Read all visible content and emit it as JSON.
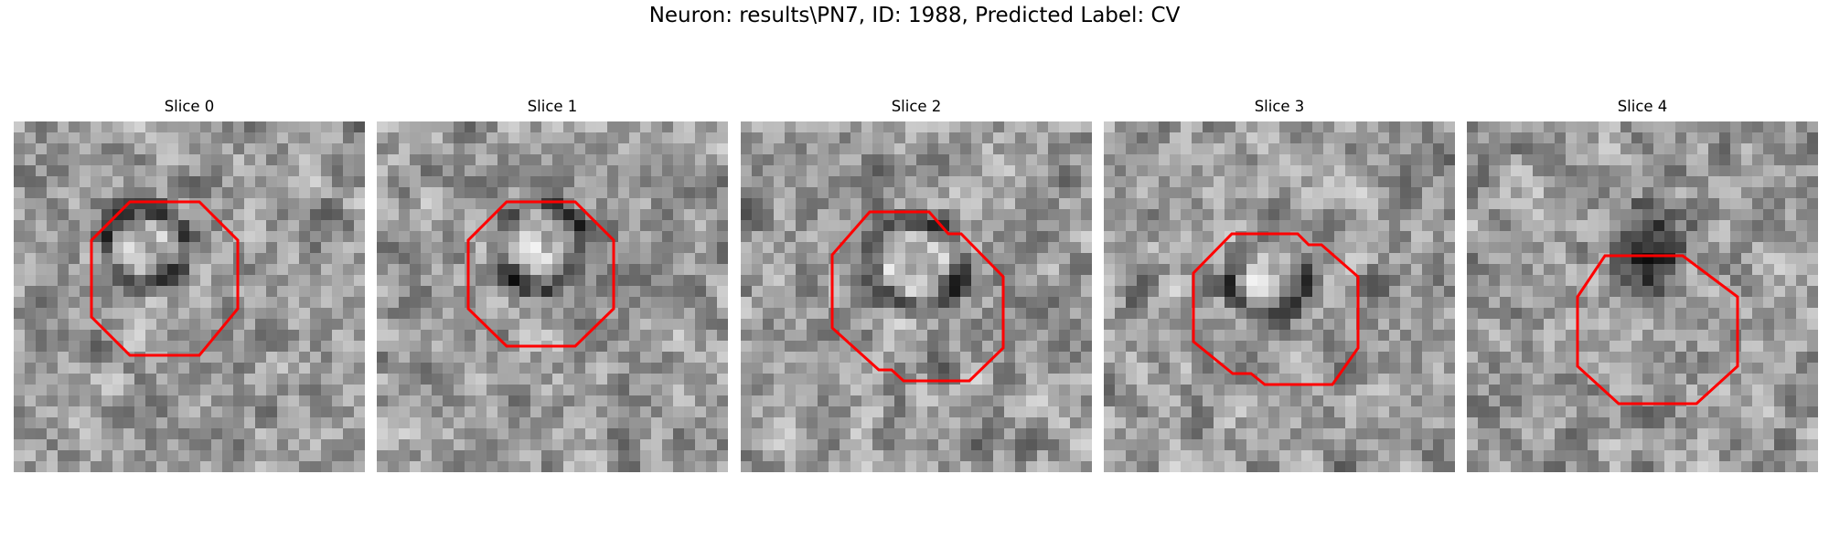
{
  "figure": {
    "title": "Neuron: results\\PN7, ID: 1988, Predicted Label: CV"
  },
  "slices": [
    {
      "title": "Slice 0",
      "overlay": "red outline polygon",
      "overlay_color": "#ff0000",
      "seed": 11
    },
    {
      "title": "Slice 1",
      "overlay": "red outline polygon",
      "overlay_color": "#ff0000",
      "seed": 23
    },
    {
      "title": "Slice 2",
      "overlay": "red outline polygon",
      "overlay_color": "#ff0000",
      "seed": 37
    },
    {
      "title": "Slice 3",
      "overlay": "red outline polygon",
      "overlay_color": "#ff0000",
      "seed": 41
    },
    {
      "title": "Slice 4",
      "overlay": "red outline polygon",
      "overlay_color": "#ff0000",
      "seed": 59
    }
  ],
  "colormap": "grayscale"
}
